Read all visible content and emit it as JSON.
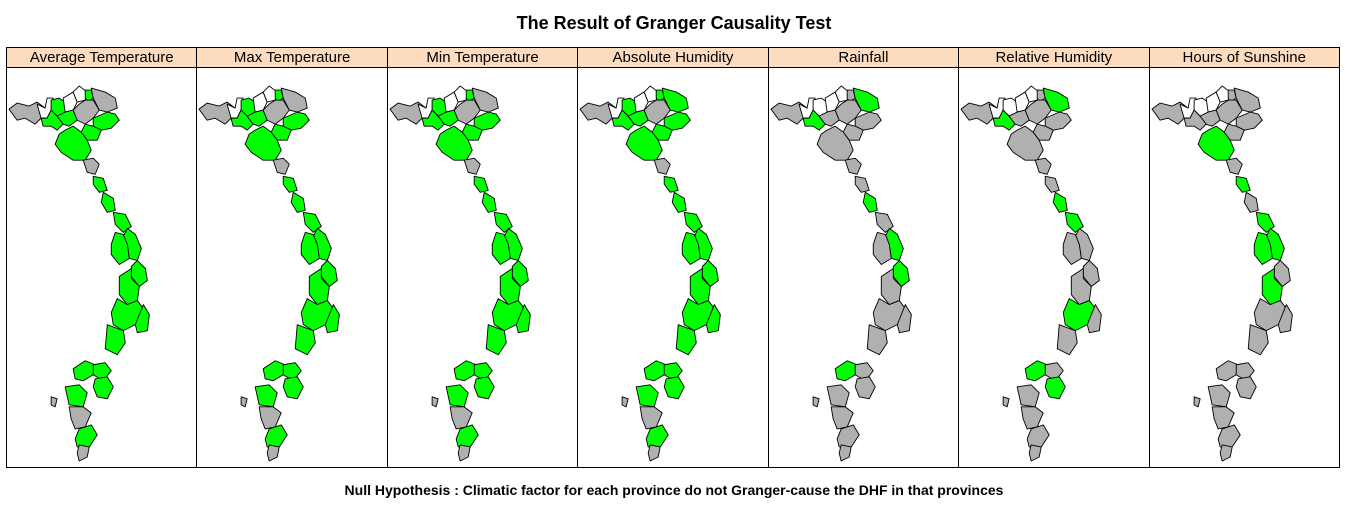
{
  "figure": {
    "title": "The Result of Granger Causality Test",
    "footnote": "Null Hypothesis : Climatic factor for each province do not Granger-cause the DHF in that provinces"
  },
  "colors": {
    "significant": "#00ff00",
    "not_significant": "#b0b0b0",
    "no_data": "#ffffff",
    "strip": "#fddbbf"
  },
  "panels": [
    {
      "label": "Average Temperature",
      "significant_regions": [
        2,
        5,
        7,
        8,
        10,
        11,
        12,
        14,
        15,
        16,
        17,
        18,
        19,
        20,
        21,
        22,
        23,
        24,
        25,
        26,
        27,
        29
      ]
    },
    {
      "label": "Max Temperature",
      "significant_regions": [
        2,
        5,
        7,
        8,
        10,
        11,
        12,
        14,
        15,
        16,
        17,
        18,
        19,
        20,
        21,
        22,
        23,
        24,
        25,
        26,
        27,
        29
      ]
    },
    {
      "label": "Min Temperature",
      "significant_regions": [
        2,
        5,
        7,
        8,
        10,
        11,
        12,
        14,
        15,
        16,
        17,
        18,
        19,
        20,
        21,
        22,
        23,
        24,
        25,
        26,
        27,
        29
      ]
    },
    {
      "label": "Absolute Humidity",
      "significant_regions": [
        2,
        5,
        6,
        7,
        8,
        10,
        11,
        12,
        14,
        15,
        16,
        17,
        18,
        19,
        20,
        21,
        22,
        23,
        24,
        25,
        26,
        27,
        29
      ]
    },
    {
      "label": "Rainfall",
      "significant_regions": [
        6,
        7,
        15,
        17,
        19,
        24
      ]
    },
    {
      "label": "Relative Humidity",
      "significant_regions": [
        6,
        7,
        15,
        16,
        21,
        24,
        26
      ]
    },
    {
      "label": "Hours of Sunshine",
      "significant_regions": [
        12,
        14,
        16,
        17,
        18,
        20
      ]
    }
  ]
}
